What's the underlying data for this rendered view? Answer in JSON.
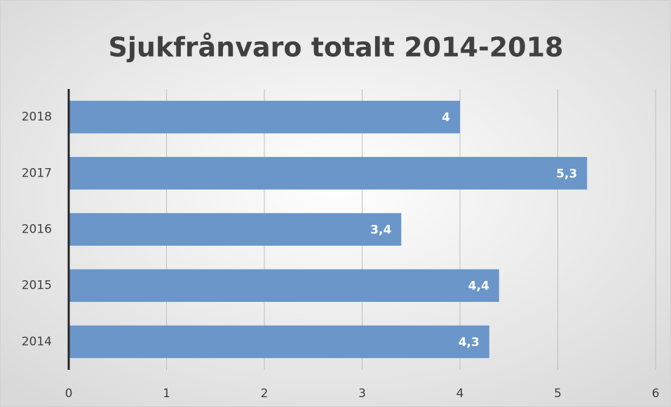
{
  "chart_data": {
    "type": "barh",
    "title": "Sjukfrånvaro totalt 2014-2018",
    "categories": [
      "2018",
      "2017",
      "2016",
      "2015",
      "2014"
    ],
    "values": [
      4,
      5.3,
      3.4,
      4.4,
      4.3
    ],
    "value_labels": [
      "4",
      "5,3",
      "3,4",
      "4,4",
      "4,3"
    ],
    "color": "#6a96c9",
    "xlim": [
      0,
      6
    ],
    "xticks": [
      0,
      1,
      2,
      3,
      4,
      5,
      6
    ],
    "grid": true
  }
}
